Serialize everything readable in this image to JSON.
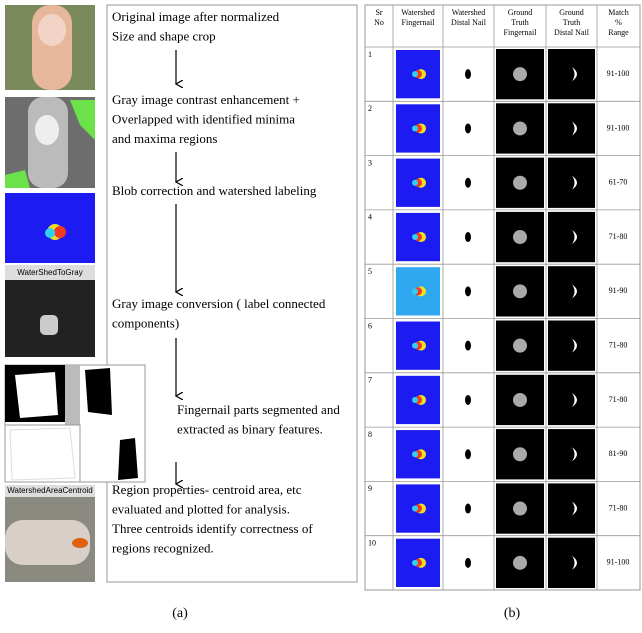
{
  "panel_a": {
    "steps": [
      {
        "lines": [
          "Original image after normalized",
          "Size and shape crop"
        ]
      },
      {
        "lines": [
          "Gray image contrast enhancement +",
          "Overlapped with  identified minima",
          "and maxima regions"
        ]
      },
      {
        "lines": [
          "Blob correction and watershed labeling"
        ]
      },
      {
        "lines": [
          "Gray image conversion ( label connected",
          "components)"
        ]
      },
      {
        "lines": [
          "Fingernail parts segmented and",
          "extracted as binary  features."
        ]
      },
      {
        "lines": [
          "Region properties- centroid area, etc",
          "evaluated and plotted for analysis.",
          " Three centroids  identify correctness of",
          "regions recognized."
        ]
      }
    ],
    "image_labels": [
      "WaterShedToGray",
      "WatershedAreaCentroid"
    ],
    "caption": "(a)"
  },
  "panel_b": {
    "header": [
      [
        "Sr",
        "No"
      ],
      [
        "Watershed",
        "Fingernail"
      ],
      [
        "Watershed",
        "Distal Nail"
      ],
      [
        "Ground",
        "Truth",
        "Fingernail"
      ],
      [
        "Ground",
        "Truth",
        "Distal Nail"
      ],
      [
        "Match",
        "%",
        "Range"
      ]
    ],
    "rows": [
      [
        "1",
        "91-100"
      ],
      [
        "2",
        "91-100"
      ],
      [
        "3",
        "61-70"
      ],
      [
        "4",
        "71-80"
      ],
      [
        "5",
        "91-90"
      ],
      [
        "6",
        "71-80"
      ],
      [
        "7",
        "71-80"
      ],
      [
        "8",
        "81-90"
      ],
      [
        "9",
        "71-80"
      ],
      [
        "10",
        "91-100"
      ]
    ],
    "caption": "(b)"
  }
}
